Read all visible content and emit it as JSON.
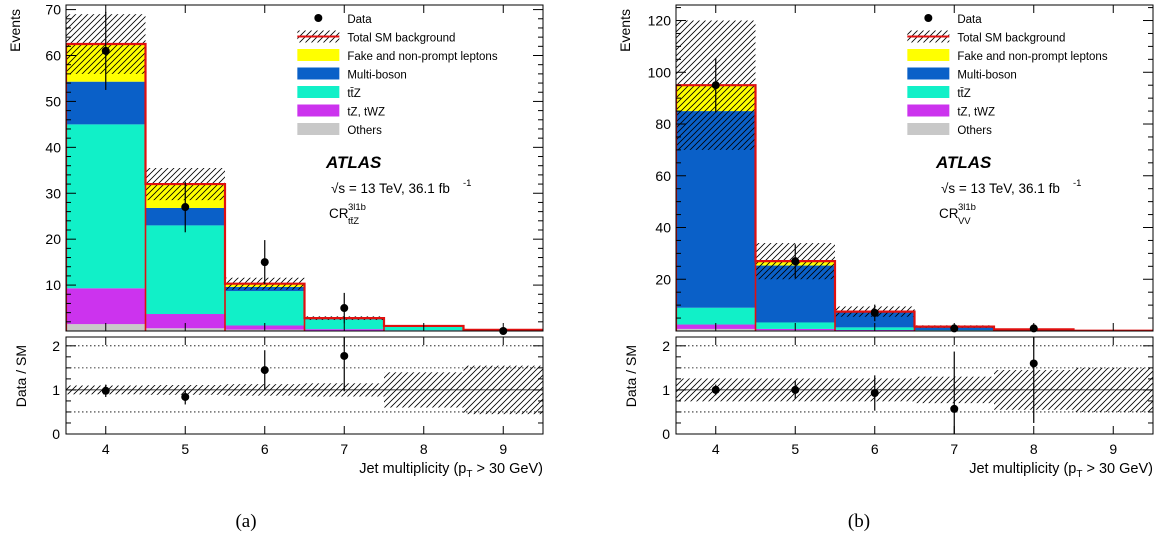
{
  "colors": {
    "others": "#c8c8c8",
    "tZ_tWZ": "#cc33ee",
    "ttZ": "#11f0c8",
    "multiboson": "#0a60c8",
    "fake": "#ffff00",
    "total_line": "#e01010"
  },
  "legend": {
    "data": "Data",
    "total": "Total SM background",
    "fake": "Fake and non-prompt leptons",
    "multiboson": "Multi-boson",
    "ttZ": "tt̄Z",
    "tZ_tWZ": "tZ, tWZ",
    "others": "Others"
  },
  "atlas": {
    "label": "ATLAS",
    "energy": "√s = 13 TeV, 36.1 fb",
    "energy_sup": "-1",
    "cr_main": "CR",
    "cr_sup": "3l1b"
  },
  "chart_data": [
    {
      "type": "bar",
      "panel": "(a)",
      "region_sub": "tt̄Z",
      "categories": [
        "4",
        "5",
        "6",
        "7",
        "8",
        "9"
      ],
      "series": [
        {
          "name": "Others",
          "values": [
            1.5,
            0.6,
            0.3,
            0.1,
            0.05,
            0.02
          ]
        },
        {
          "name": "tZ, tWZ",
          "values": [
            7.8,
            3.1,
            0.9,
            0.3,
            0.1,
            0.03
          ]
        },
        {
          "name": "tt̄Z",
          "values": [
            35.7,
            19.3,
            7.5,
            2.1,
            0.75,
            0.2
          ]
        },
        {
          "name": "Multi-boson",
          "values": [
            9.3,
            3.8,
            0.9,
            0.1,
            0.05,
            0.0
          ]
        },
        {
          "name": "Fake and non-prompt leptons",
          "values": [
            8.2,
            5.2,
            0.7,
            0.2,
            0.15,
            0.0
          ]
        }
      ],
      "total": [
        62.5,
        32.0,
        10.3,
        2.8,
        1.1,
        0.25
      ],
      "total_unc": [
        6.5,
        3.5,
        1.3,
        0.4,
        0.2,
        0.1
      ],
      "data": [
        61,
        27,
        15,
        5,
        0,
        0
      ],
      "data_err": [
        8.5,
        5.5,
        4.8,
        3.3,
        0,
        0
      ],
      "data_shown": [
        true,
        true,
        true,
        true,
        false,
        true
      ],
      "ratio": [
        0.98,
        0.84,
        1.45,
        1.77,
        null,
        null
      ],
      "ratio_err": [
        0.14,
        0.17,
        0.45,
        0.8,
        0,
        0
      ],
      "ratio_unc": [
        0.1,
        0.11,
        0.13,
        0.15,
        0.4,
        0.55
      ],
      "ylabel": "Events",
      "ylim": [
        0,
        71
      ],
      "yticks": [
        10,
        20,
        30,
        40,
        50,
        60,
        70
      ],
      "ratio_ylabel": "Data / SM",
      "ratio_ylim": [
        0,
        2.2
      ],
      "ratio_yticks": [
        0,
        1,
        2
      ],
      "xlabel": "Jet multiplicity (p",
      "xlabel_sub": "T",
      "xlabel_tail": " > 30 GeV)"
    },
    {
      "type": "bar",
      "panel": "(b)",
      "region_sub": "VV",
      "categories": [
        "4",
        "5",
        "6",
        "7",
        "8",
        "9"
      ],
      "series": [
        {
          "name": "Others",
          "values": [
            0.8,
            0.3,
            0.2,
            0.05,
            0.02,
            0.0
          ]
        },
        {
          "name": "tZ, tWZ",
          "values": [
            1.7,
            0.5,
            0.2,
            0.05,
            0.02,
            0.0
          ]
        },
        {
          "name": "tt̄Z",
          "values": [
            6.5,
            2.5,
            1.0,
            0.2,
            0.1,
            0.0
          ]
        },
        {
          "name": "Multi-boson",
          "values": [
            76.0,
            22.0,
            5.8,
            1.3,
            0.5,
            0.1
          ]
        },
        {
          "name": "Fake and non-prompt leptons",
          "values": [
            10.0,
            1.7,
            0.3,
            0.1,
            0.0,
            0.0
          ]
        }
      ],
      "total": [
        95.0,
        27.0,
        7.5,
        1.7,
        0.64,
        0.1
      ],
      "total_unc": [
        25.0,
        7.0,
        2.0,
        0.5,
        0.3,
        0.05
      ],
      "data": [
        95,
        27,
        7,
        1,
        1,
        0
      ],
      "data_err": [
        10.5,
        6.5,
        3.2,
        1.3,
        1.3,
        0
      ],
      "data_shown": [
        true,
        true,
        true,
        true,
        true,
        false
      ],
      "ratio": [
        1.0,
        1.0,
        0.93,
        0.57,
        1.6,
        null
      ],
      "ratio_err": [
        0.12,
        0.2,
        0.4,
        1.3,
        1.35,
        0
      ],
      "ratio_unc": [
        0.26,
        0.26,
        0.26,
        0.3,
        0.45,
        0.5
      ],
      "ylabel": "Events",
      "ylim": [
        0,
        126
      ],
      "yticks": [
        20,
        40,
        60,
        80,
        100,
        120
      ],
      "ratio_ylabel": "Data / SM",
      "ratio_ylim": [
        0,
        2.2
      ],
      "ratio_yticks": [
        0,
        1,
        2
      ],
      "xlabel": "Jet multiplicity (p",
      "xlabel_sub": "T",
      "xlabel_tail": " > 30 GeV)"
    }
  ]
}
